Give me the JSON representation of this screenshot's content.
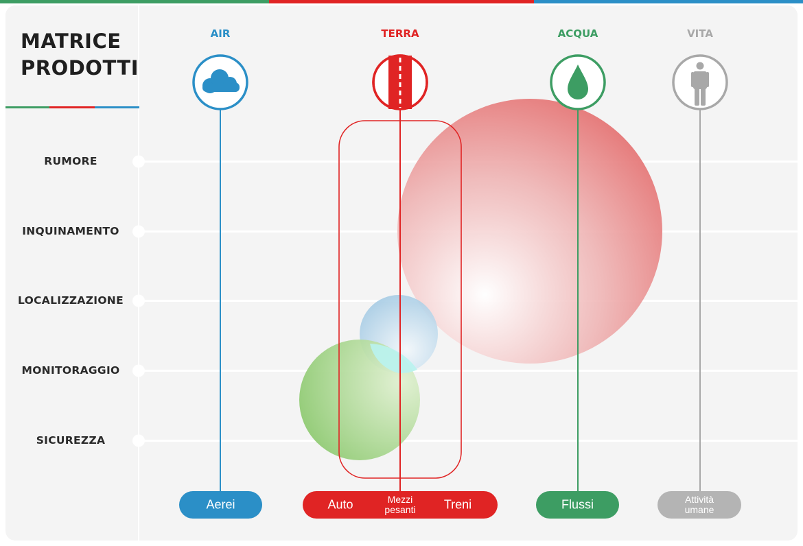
{
  "title": {
    "line1": "MATRICE",
    "line2": "PRODOTTI"
  },
  "colors": {
    "air": "#2b8fc7",
    "terra": "#e02424",
    "acqua": "#3d9d63",
    "vita": "#a8a8a8",
    "text": "#2a2a2a",
    "panel": "#f4f4f4"
  },
  "rows": [
    "RUMORE",
    "INQUINAMENTO",
    "LOCALIZZAZIONE",
    "MONITORAGGIO",
    "SICUREZZA"
  ],
  "columns": [
    {
      "key": "air",
      "label": "AIR",
      "icon": "cloud-icon"
    },
    {
      "key": "terra",
      "label": "TERRA",
      "icon": "road-icon"
    },
    {
      "key": "acqua",
      "label": "ACQUA",
      "icon": "water-drop-icon"
    },
    {
      "key": "vita",
      "label": "VITA",
      "icon": "person-icon"
    }
  ],
  "categories": {
    "air": [
      "Aerei"
    ],
    "terra": [
      "Auto",
      "Mezzi pesanti",
      "Treni"
    ],
    "acqua": [
      "Flussi"
    ],
    "vita": [
      "Attività umane"
    ]
  }
}
